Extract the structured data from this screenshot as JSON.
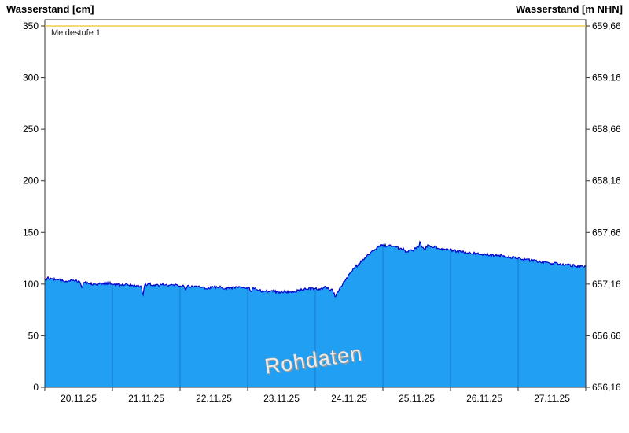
{
  "header": {
    "left_axis_title": "Wasserstand [cm]",
    "right_axis_title": "Wasserstand [m NHN]"
  },
  "watermark": {
    "text": "Rohdaten"
  },
  "chart_data": {
    "type": "area",
    "title": "",
    "x_labels": [
      "20.11.25",
      "21.11.25",
      "22.11.25",
      "23.11.25",
      "24.11.25",
      "25.11.25",
      "26.11.25",
      "27.11.25"
    ],
    "x_range_days": [
      0,
      8
    ],
    "y_left": {
      "label": "Wasserstand [cm]",
      "ticks": [
        0,
        50,
        100,
        150,
        200,
        250,
        300,
        350
      ],
      "range": [
        0,
        350
      ]
    },
    "y_right": {
      "label": "Wasserstand [m NHN]",
      "tick_labels": [
        "656,16",
        "656,66",
        "657,16",
        "657,66",
        "658,16",
        "658,66",
        "659,16",
        "659,66"
      ],
      "range_m": [
        656.16,
        659.66
      ]
    },
    "alert_line": {
      "label": "Meldestufe 1",
      "value_cm": 350,
      "color": "#EFC227"
    },
    "grid": {
      "horizontal": false,
      "vertical_day_dividers": true
    },
    "legend": "none",
    "colors": {
      "fill": "#219FF2",
      "stroke": "#0000CD",
      "day_divider": "#1678CC",
      "frame": "#333333",
      "tick_text": "#000000"
    },
    "noise": {
      "amplitude_cm": 1.3,
      "seed": 12
    },
    "series": [
      {
        "name": "Wasserstand Rohdaten",
        "unit": "cm",
        "points": [
          [
            0.0,
            104
          ],
          [
            0.05,
            106
          ],
          [
            0.1,
            105
          ],
          [
            0.2,
            104
          ],
          [
            0.3,
            103
          ],
          [
            0.4,
            104
          ],
          [
            0.5,
            103
          ],
          [
            0.53,
            102
          ],
          [
            0.55,
            95
          ],
          [
            0.57,
            102
          ],
          [
            0.65,
            101
          ],
          [
            0.75,
            100
          ],
          [
            0.85,
            100
          ],
          [
            0.95,
            101
          ],
          [
            1.0,
            100
          ],
          [
            1.1,
            99
          ],
          [
            1.2,
            100
          ],
          [
            1.3,
            99
          ],
          [
            1.4,
            98
          ],
          [
            1.43,
            98
          ],
          [
            1.45,
            87
          ],
          [
            1.47,
            99
          ],
          [
            1.55,
            100
          ],
          [
            1.65,
            99
          ],
          [
            1.75,
            100
          ],
          [
            1.85,
            99
          ],
          [
            1.95,
            99
          ],
          [
            2.06,
            98
          ],
          [
            2.08,
            93
          ],
          [
            2.1,
            98
          ],
          [
            2.2,
            98
          ],
          [
            2.3,
            97
          ],
          [
            2.4,
            96
          ],
          [
            2.5,
            97
          ],
          [
            2.6,
            97
          ],
          [
            2.7,
            96
          ],
          [
            2.8,
            97
          ],
          [
            2.9,
            97
          ],
          [
            3.0,
            96
          ],
          [
            3.03,
            96
          ],
          [
            3.05,
            91
          ],
          [
            3.07,
            96
          ],
          [
            3.15,
            94
          ],
          [
            3.25,
            93
          ],
          [
            3.35,
            94
          ],
          [
            3.45,
            92
          ],
          [
            3.55,
            93
          ],
          [
            3.65,
            92
          ],
          [
            3.75,
            94
          ],
          [
            3.85,
            95
          ],
          [
            3.95,
            96
          ],
          [
            4.05,
            95
          ],
          [
            4.15,
            97
          ],
          [
            4.25,
            94
          ],
          [
            4.3,
            88
          ],
          [
            4.35,
            95
          ],
          [
            4.4,
            100
          ],
          [
            4.45,
            104
          ],
          [
            4.5,
            109
          ],
          [
            4.55,
            113
          ],
          [
            4.6,
            117
          ],
          [
            4.65,
            120
          ],
          [
            4.7,
            123
          ],
          [
            4.75,
            126
          ],
          [
            4.8,
            129
          ],
          [
            4.85,
            132
          ],
          [
            4.9,
            135
          ],
          [
            4.95,
            137
          ],
          [
            5.0,
            138
          ],
          [
            5.05,
            137
          ],
          [
            5.1,
            138
          ],
          [
            5.15,
            136
          ],
          [
            5.2,
            136
          ],
          [
            5.25,
            134
          ],
          [
            5.3,
            134
          ],
          [
            5.35,
            131
          ],
          [
            5.4,
            133
          ],
          [
            5.45,
            133
          ],
          [
            5.5,
            135
          ],
          [
            5.53,
            136
          ],
          [
            5.55,
            142
          ],
          [
            5.57,
            136
          ],
          [
            5.62,
            134
          ],
          [
            5.67,
            138
          ],
          [
            5.72,
            136
          ],
          [
            5.77,
            137
          ],
          [
            5.82,
            134
          ],
          [
            5.87,
            134
          ],
          [
            5.92,
            133
          ],
          [
            6.0,
            133
          ],
          [
            6.1,
            132
          ],
          [
            6.2,
            131
          ],
          [
            6.3,
            130
          ],
          [
            6.4,
            130
          ],
          [
            6.5,
            129
          ],
          [
            6.6,
            128
          ],
          [
            6.7,
            128
          ],
          [
            6.8,
            127
          ],
          [
            6.9,
            126
          ],
          [
            7.0,
            125
          ],
          [
            7.1,
            124
          ],
          [
            7.2,
            123
          ],
          [
            7.3,
            122
          ],
          [
            7.4,
            121
          ],
          [
            7.5,
            120
          ],
          [
            7.6,
            120
          ],
          [
            7.7,
            119
          ],
          [
            7.8,
            118
          ],
          [
            7.9,
            117
          ],
          [
            8.0,
            117
          ]
        ]
      }
    ]
  }
}
